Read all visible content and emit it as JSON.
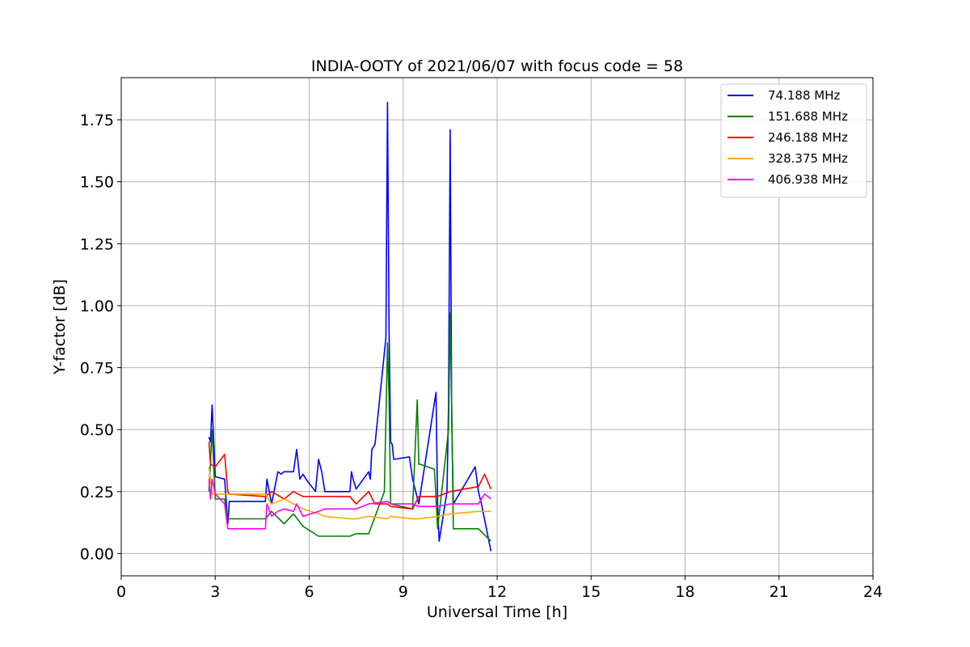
{
  "chart_data": {
    "type": "line",
    "title": "INDIA-OOTY of 2021/06/07 with focus code = 58",
    "xlabel": "Universal Time [h]",
    "ylabel": "Y-factor [dB]",
    "xlim": [
      0,
      24
    ],
    "ylim": [
      -0.09,
      1.92
    ],
    "xticks": [
      0,
      3,
      6,
      9,
      12,
      15,
      18,
      21,
      24
    ],
    "xtick_labels": [
      "0",
      "3",
      "6",
      "9",
      "12",
      "15",
      "18",
      "21",
      "24"
    ],
    "yticks": [
      0.0,
      0.25,
      0.5,
      0.75,
      1.0,
      1.25,
      1.5,
      1.75
    ],
    "ytick_labels": [
      "0.00",
      "0.25",
      "0.50",
      "0.75",
      "1.00",
      "1.25",
      "1.50",
      "1.75"
    ],
    "grid": true,
    "legend_position": "top-right",
    "series": [
      {
        "name": " 74.188 MHz",
        "color": "#0000ff",
        "x": [
          2.8,
          2.85,
          2.9,
          3.0,
          3.3,
          3.4,
          3.45,
          4.6,
          4.65,
          4.8,
          5.0,
          5.1,
          5.2,
          5.5,
          5.6,
          5.7,
          5.8,
          5.9,
          6.2,
          6.3,
          6.4,
          6.5,
          7.3,
          7.35,
          7.4,
          7.5,
          7.9,
          7.95,
          8.0,
          8.1,
          8.45,
          8.5,
          8.55,
          8.6,
          8.65,
          8.7,
          9.2,
          9.3,
          9.5,
          10.05,
          10.1,
          10.15,
          10.4,
          10.45,
          10.5,
          10.55,
          10.6,
          11.3,
          11.4,
          11.5,
          11.8
        ],
        "y": [
          0.47,
          0.45,
          0.6,
          0.31,
          0.3,
          0.12,
          0.21,
          0.21,
          0.3,
          0.2,
          0.33,
          0.32,
          0.33,
          0.33,
          0.42,
          0.3,
          0.32,
          0.3,
          0.25,
          0.38,
          0.33,
          0.25,
          0.25,
          0.33,
          0.3,
          0.26,
          0.33,
          0.3,
          0.42,
          0.44,
          0.87,
          1.82,
          0.9,
          0.45,
          0.44,
          0.38,
          0.39,
          0.3,
          0.2,
          0.65,
          0.2,
          0.05,
          0.25,
          0.6,
          1.71,
          0.55,
          0.2,
          0.35,
          0.25,
          0.2,
          0.01
        ]
      },
      {
        "name": "151.688 MHz",
        "color": "#008000",
        "x": [
          2.8,
          2.9,
          3.0,
          3.3,
          3.4,
          4.6,
          4.8,
          5.2,
          5.5,
          5.8,
          6.3,
          6.5,
          7.3,
          7.5,
          7.9,
          8.4,
          8.5,
          8.55,
          8.6,
          9.3,
          9.45,
          9.5,
          9.55,
          10.0,
          10.1,
          10.45,
          10.5,
          10.55,
          10.6,
          11.4,
          11.8
        ],
        "y": [
          0.25,
          0.5,
          0.22,
          0.22,
          0.14,
          0.14,
          0.17,
          0.12,
          0.16,
          0.11,
          0.07,
          0.07,
          0.07,
          0.08,
          0.08,
          0.25,
          0.85,
          0.62,
          0.2,
          0.18,
          0.62,
          0.36,
          0.36,
          0.34,
          0.1,
          0.5,
          0.97,
          0.6,
          0.1,
          0.1,
          0.05
        ]
      },
      {
        "name": "246.188 MHz",
        "color": "#ff0000",
        "x": [
          2.8,
          2.85,
          3.0,
          3.3,
          3.4,
          3.45,
          4.6,
          4.8,
          5.2,
          5.5,
          5.8,
          6.3,
          6.5,
          7.3,
          7.5,
          7.9,
          8.1,
          8.5,
          8.6,
          9.3,
          9.5,
          10.1,
          10.5,
          11.4,
          11.6,
          11.8
        ],
        "y": [
          0.45,
          0.36,
          0.35,
          0.4,
          0.25,
          0.24,
          0.23,
          0.25,
          0.22,
          0.25,
          0.23,
          0.23,
          0.23,
          0.23,
          0.2,
          0.25,
          0.2,
          0.2,
          0.19,
          0.18,
          0.23,
          0.23,
          0.25,
          0.27,
          0.32,
          0.26
        ]
      },
      {
        "name": "328.375 MHz",
        "color": "#ffa500",
        "x": [
          2.8,
          2.9,
          3.0,
          3.4,
          4.6,
          4.8,
          5.2,
          5.5,
          5.8,
          6.3,
          6.5,
          7.3,
          7.5,
          7.9,
          8.5,
          8.6,
          9.3,
          9.5,
          10.1,
          10.5,
          11.4,
          11.8
        ],
        "y": [
          0.35,
          0.24,
          0.24,
          0.24,
          0.24,
          0.2,
          0.22,
          0.2,
          0.18,
          0.16,
          0.15,
          0.14,
          0.14,
          0.15,
          0.14,
          0.15,
          0.14,
          0.14,
          0.15,
          0.16,
          0.17,
          0.17
        ]
      },
      {
        "name": "406.938 MHz",
        "color": "#ff00ff",
        "x": [
          2.8,
          2.85,
          2.9,
          3.0,
          3.3,
          3.4,
          3.45,
          4.6,
          4.65,
          4.8,
          5.0,
          5.2,
          5.5,
          5.6,
          5.8,
          6.3,
          6.5,
          7.3,
          7.5,
          7.9,
          8.5,
          8.6,
          9.3,
          9.5,
          10.1,
          10.5,
          11.4,
          11.6,
          11.8
        ],
        "y": [
          0.3,
          0.22,
          0.3,
          0.24,
          0.2,
          0.1,
          0.1,
          0.1,
          0.2,
          0.15,
          0.17,
          0.18,
          0.17,
          0.2,
          0.15,
          0.17,
          0.18,
          0.18,
          0.18,
          0.2,
          0.21,
          0.2,
          0.2,
          0.19,
          0.19,
          0.2,
          0.2,
          0.24,
          0.22
        ]
      }
    ]
  }
}
